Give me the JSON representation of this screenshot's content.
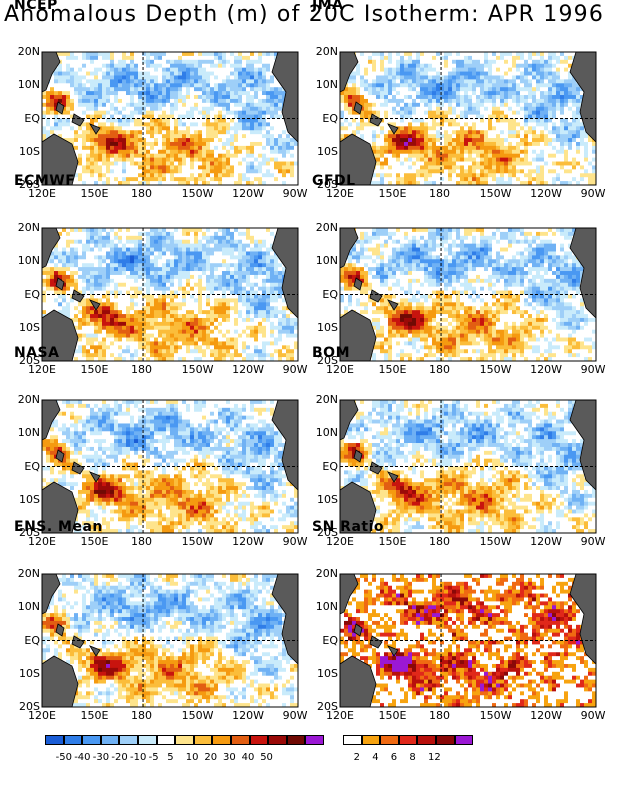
{
  "title": "Anomalous Depth (m) of 20C Isotherm: APR 1996",
  "chart_data": [
    {
      "type": "heatmap",
      "title": "NCEP",
      "xlabels": [
        "120E",
        "150E",
        "180",
        "150W",
        "120W",
        "90W"
      ],
      "ylabels": [
        "20N",
        "10N",
        "EQ",
        "10S",
        "20S"
      ]
    },
    {
      "type": "heatmap",
      "title": "JMA",
      "xlabels": [
        "120E",
        "150E",
        "180",
        "150W",
        "120W",
        "90W"
      ],
      "ylabels": [
        "20N",
        "10N",
        "EQ",
        "10S",
        "20S"
      ]
    },
    {
      "type": "heatmap",
      "title": "ECMWF",
      "xlabels": [
        "120E",
        "150E",
        "180",
        "150W",
        "120W",
        "90W"
      ],
      "ylabels": [
        "20N",
        "10N",
        "EQ",
        "10S",
        "20S"
      ]
    },
    {
      "type": "heatmap",
      "title": "GFDL",
      "xlabels": [
        "120E",
        "150E",
        "180",
        "150W",
        "120W",
        "90W"
      ],
      "ylabels": [
        "20N",
        "10N",
        "EQ",
        "10S",
        "20S"
      ]
    },
    {
      "type": "heatmap",
      "title": "NASA",
      "xlabels": [
        "120E",
        "150E",
        "180",
        "150W",
        "120W",
        "90W"
      ],
      "ylabels": [
        "20N",
        "10N",
        "EQ",
        "10S",
        "20S"
      ]
    },
    {
      "type": "heatmap",
      "title": "BOM",
      "xlabels": [
        "120E",
        "150E",
        "180",
        "150W",
        "120W",
        "90W"
      ],
      "ylabels": [
        "20N",
        "10N",
        "EQ",
        "10S",
        "20S"
      ]
    },
    {
      "type": "heatmap",
      "title": "ENS. Mean",
      "xlabels": [
        "120E",
        "150E",
        "180",
        "150W",
        "120W",
        "90W"
      ],
      "ylabels": [
        "20N",
        "10N",
        "EQ",
        "10S",
        "20S"
      ]
    },
    {
      "type": "heatmap",
      "title": "SN Ratio",
      "xlabels": [
        "120E",
        "150E",
        "180",
        "150W",
        "120W",
        "90W"
      ],
      "ylabels": [
        "20N",
        "10N",
        "EQ",
        "10S",
        "20S"
      ]
    }
  ],
  "colorbar_anom": {
    "colors": [
      "#1a5dd6",
      "#2f7de8",
      "#4a98f2",
      "#6fb1f4",
      "#9ecff8",
      "#c9ebfb",
      "#ffffff",
      "#fee48c",
      "#fbbd3a",
      "#f59a10",
      "#e25e12",
      "#c8140e",
      "#9a0a08",
      "#700a04",
      "#9b18d4"
    ],
    "labels": [
      "-50",
      "-40",
      "-30",
      "-20",
      "-10",
      "-5",
      "5",
      "10",
      "20",
      "30",
      "40",
      "50"
    ]
  },
  "colorbar_sn": {
    "colors": [
      "#ffffff",
      "#f7a310",
      "#f06a12",
      "#e0281a",
      "#b8100c",
      "#8a0808",
      "#9b18d4"
    ],
    "labels": [
      "2",
      "4",
      "6",
      "8",
      "12"
    ]
  }
}
